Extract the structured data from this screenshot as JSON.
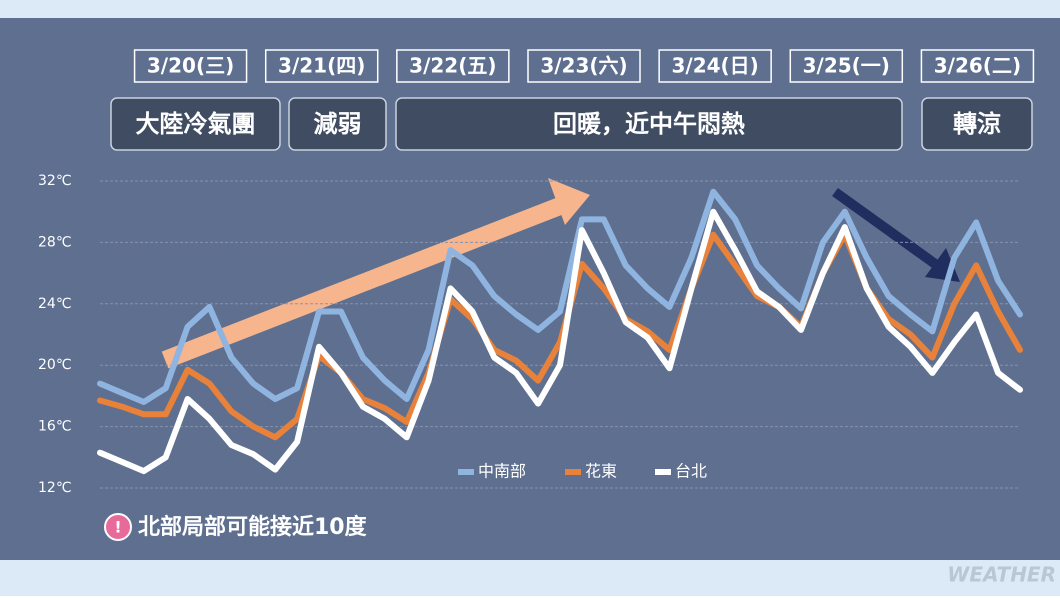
{
  "chart_data": {
    "type": "line",
    "days": [
      "3/20(三)",
      "3/21(四)",
      "3/22(五)",
      "3/23(六)",
      "3/24(日)",
      "3/25(一)",
      "3/26(二)"
    ],
    "phases": [
      "大陸冷氣團",
      "減弱",
      "回暖，近中午悶熱",
      "轉涼"
    ],
    "ylim": [
      12,
      32
    ],
    "yticks": [
      {
        "value": 12,
        "label": "12℃"
      },
      {
        "value": 16,
        "label": "16℃"
      },
      {
        "value": 20,
        "label": "20℃"
      },
      {
        "value": 24,
        "label": "24℃"
      },
      {
        "value": 28,
        "label": "28℃"
      },
      {
        "value": 32,
        "label": "32℃"
      }
    ],
    "grid": true,
    "series": [
      {
        "name": "中南部",
        "color": "#8fb4e0",
        "values": [
          18.8,
          18.2,
          17.6,
          18.5,
          22.5,
          23.8,
          20.5,
          18.8,
          17.8,
          18.5,
          23.5,
          23.5,
          20.5,
          19.0,
          17.8,
          21.0,
          27.5,
          26.5,
          24.5,
          23.3,
          22.3,
          23.5,
          29.5,
          29.5,
          26.5,
          25.0,
          23.8,
          27.0,
          31.3,
          29.5,
          26.5,
          25.0,
          23.7,
          28.0,
          30.0,
          27.0,
          24.5,
          23.3,
          22.2,
          27.0,
          29.3,
          25.5,
          23.3
        ]
      },
      {
        "name": "花東",
        "color": "#e8823a",
        "values": [
          17.7,
          17.3,
          16.8,
          16.8,
          19.7,
          18.8,
          17.0,
          16.0,
          15.3,
          16.5,
          20.6,
          19.5,
          17.8,
          17.2,
          16.3,
          19.5,
          24.3,
          23.0,
          21.0,
          20.3,
          19.0,
          21.5,
          26.6,
          25.0,
          23.0,
          22.2,
          21.0,
          25.0,
          28.5,
          26.5,
          24.5,
          23.8,
          22.5,
          26.0,
          28.5,
          25.0,
          23.0,
          22.0,
          20.5,
          24.0,
          26.5,
          23.5,
          21.0
        ]
      },
      {
        "name": "台北",
        "color": "#ffffff",
        "values": [
          14.3,
          13.7,
          13.1,
          14.0,
          17.8,
          16.5,
          14.8,
          14.2,
          13.2,
          15.0,
          21.2,
          19.5,
          17.3,
          16.5,
          15.3,
          19.0,
          25.0,
          23.5,
          20.5,
          19.5,
          17.5,
          20.0,
          28.8,
          26.0,
          22.8,
          21.8,
          19.8,
          25.0,
          30.0,
          27.5,
          24.8,
          23.8,
          22.3,
          26.0,
          29.0,
          25.0,
          22.5,
          21.2,
          19.5,
          21.5,
          23.3,
          19.5,
          18.4
        ]
      }
    ],
    "note": "北部局部可能接近10度",
    "watermark": "WEATHER"
  }
}
